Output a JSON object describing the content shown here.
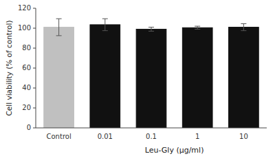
{
  "chart_data": {
    "type": "bar",
    "categories": [
      "Control",
      "0.01",
      "0.1",
      "1",
      "10"
    ],
    "values": [
      101.0,
      103.5,
      99.0,
      100.5,
      101.0
    ],
    "errors": [
      8.5,
      6.0,
      2.0,
      1.5,
      3.5
    ],
    "colors": [
      "#c0c0c0",
      "#111111",
      "#111111",
      "#111111",
      "#111111"
    ],
    "ylabel": "Cell viability (% of control)",
    "xlabel": "Leu-Gly (μg/ml)",
    "ylim": [
      0,
      120
    ],
    "yticks": [
      0,
      20,
      40,
      60,
      80,
      100,
      120
    ],
    "grid": false
  }
}
